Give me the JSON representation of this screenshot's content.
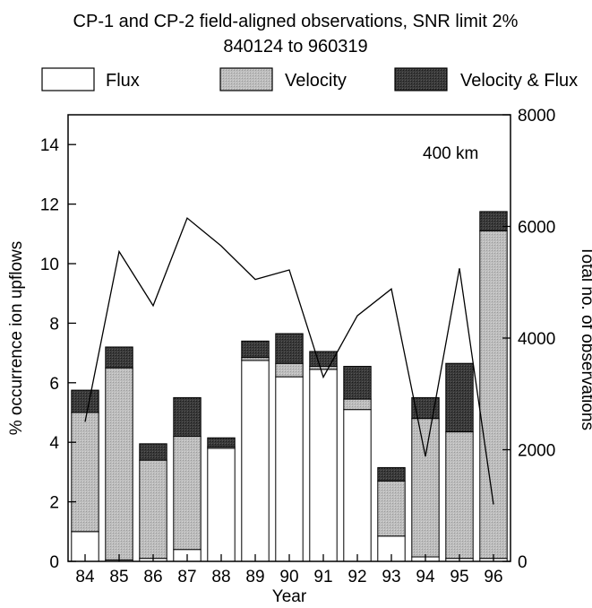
{
  "chart_data": {
    "type": "bar",
    "title": "CP-1 and CP-2 field-aligned observations, SNR limit 2%",
    "subtitle": "840124 to 960319",
    "xlabel": "Year",
    "ylabel": "% occurrence ion upflows",
    "ylabel_right": "Total no. of observations",
    "annotation": "400 km",
    "ylim": [
      0,
      15
    ],
    "ylim_right": [
      0,
      8000
    ],
    "yticks": [
      "0",
      "2",
      "4",
      "6",
      "8",
      "10",
      "12",
      "14"
    ],
    "yticks_right": [
      "0",
      "2000",
      "4000",
      "6000",
      "8000"
    ],
    "categories": [
      "84",
      "85",
      "86",
      "87",
      "88",
      "89",
      "90",
      "91",
      "92",
      "93",
      "94",
      "95",
      "96"
    ],
    "stacked": true,
    "series": [
      {
        "name": "Flux",
        "color": "#ffffff",
        "values": [
          1.0,
          0.05,
          0.1,
          0.4,
          3.8,
          6.75,
          6.2,
          6.45,
          5.1,
          0.85,
          0.15,
          0.1,
          0.1
        ]
      },
      {
        "name": "Velocity",
        "color": "#b8b8b8",
        "values": [
          4.0,
          6.45,
          3.3,
          3.8,
          0.05,
          0.1,
          0.45,
          0.1,
          0.35,
          1.85,
          4.65,
          4.25,
          11.0
        ]
      },
      {
        "name": "Velocity & Flux",
        "color": "#3a3a3a",
        "values": [
          0.75,
          0.7,
          0.55,
          1.3,
          0.3,
          0.55,
          1.0,
          0.5,
          1.1,
          0.45,
          0.7,
          2.3,
          0.65
        ]
      }
    ],
    "line_series": {
      "name": "Total no. of observations",
      "axis": "right",
      "values": [
        2500,
        5550,
        4580,
        6150,
        5650,
        5050,
        5220,
        3300,
        4400,
        4880,
        1880,
        5250,
        1020
      ]
    },
    "legend_position": "top"
  }
}
